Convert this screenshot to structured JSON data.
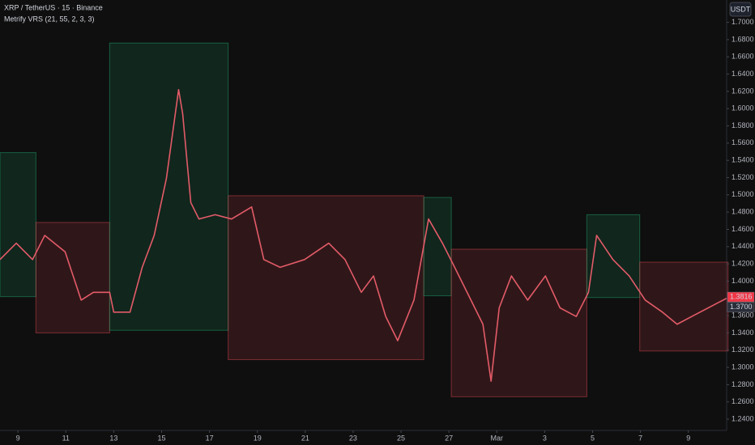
{
  "chart_data": {
    "type": "line",
    "title": "XRP / TetherUS · 15 · Binance",
    "subtitle": "Metrify VRS (21, 55, 2, 3, 3)",
    "currency": "USDT",
    "x": [
      -0.75,
      -0.07,
      0.61,
      1.12,
      1.97,
      2.64,
      3.15,
      3.83,
      4.0,
      4.68,
      5.19,
      5.69,
      6.2,
      6.71,
      6.88,
      7.22,
      7.56,
      8.24,
      8.92,
      9.76,
      10.27,
      10.95,
      11.97,
      12.98,
      13.66,
      14.34,
      14.85,
      15.36,
      15.86,
      16.54,
      17.15,
      17.73,
      18.24,
      18.92,
      19.42,
      19.76,
      20.1,
      20.61,
      21.29,
      22.03,
      22.64,
      23.32,
      23.83,
      24.17,
      24.85,
      25.53,
      26.2,
      26.92,
      27.53,
      28.14,
      29.59
    ],
    "series": [
      {
        "color": "#e35b68",
        "values": [
          1.425,
          1.444,
          1.425,
          1.453,
          1.434,
          1.378,
          1.387,
          1.387,
          1.364,
          1.364,
          1.416,
          1.453,
          1.519,
          1.622,
          1.594,
          1.491,
          1.472,
          1.477,
          1.472,
          1.486,
          1.425,
          1.416,
          1.425,
          1.444,
          1.425,
          1.387,
          1.406,
          1.359,
          1.331,
          1.378,
          1.472,
          1.444,
          1.416,
          1.378,
          1.35,
          1.284,
          1.369,
          1.406,
          1.378,
          1.406,
          1.369,
          1.359,
          1.387,
          1.453,
          1.425,
          1.406,
          1.378,
          1.364,
          1.35,
          1.359,
          1.38
        ]
      }
    ],
    "regimes": [
      {
        "x0": -0.75,
        "x1": 0.75,
        "y0": 1.382,
        "y1": 1.549,
        "color": "#1fa36b"
      },
      {
        "x0": 0.75,
        "x1": 3.83,
        "y0": 1.34,
        "y1": 1.468,
        "color": "#d9464f"
      },
      {
        "x0": 3.83,
        "x1": 8.78,
        "y0": 1.343,
        "y1": 1.676,
        "color": "#1fa36b"
      },
      {
        "x0": 8.78,
        "x1": 16.95,
        "y0": 1.309,
        "y1": 1.499,
        "color": "#d9464f"
      },
      {
        "x0": 16.95,
        "x1": 18.1,
        "y0": 1.383,
        "y1": 1.497,
        "color": "#1fa36b"
      },
      {
        "x0": 18.1,
        "x1": 23.76,
        "y0": 1.266,
        "y1": 1.437,
        "color": "#d9464f"
      },
      {
        "x0": 23.76,
        "x1": 25.97,
        "y0": 1.381,
        "y1": 1.477,
        "color": "#1fa36b"
      },
      {
        "x0": 25.97,
        "x1": 29.66,
        "y0": 1.319,
        "y1": 1.422,
        "color": "#d9464f"
      }
    ],
    "price_tags": [
      {
        "value": 1.3816,
        "label": "1.3816",
        "color": "#f23645"
      },
      {
        "value": 1.37,
        "label": "1.3700",
        "color": "#2a2e39"
      }
    ],
    "xlim": [
      -0.75,
      29.6
    ],
    "ylim": [
      1.2269,
      1.7184
    ],
    "xticks": [
      {
        "value": 0,
        "label": "9"
      },
      {
        "value": 2,
        "label": "11"
      },
      {
        "value": 4,
        "label": "13"
      },
      {
        "value": 6,
        "label": "15"
      },
      {
        "value": 8,
        "label": "17"
      },
      {
        "value": 10,
        "label": "19"
      },
      {
        "value": 12,
        "label": "21"
      },
      {
        "value": 14,
        "label": "23"
      },
      {
        "value": 16,
        "label": "25"
      },
      {
        "value": 18,
        "label": "27"
      },
      {
        "value": 20,
        "label": "Mar"
      },
      {
        "value": 22,
        "label": "3"
      },
      {
        "value": 24,
        "label": "5"
      },
      {
        "value": 26,
        "label": "7"
      },
      {
        "value": 28,
        "label": "9"
      }
    ],
    "yticks": [
      {
        "value": 1.24,
        "label": "1.2400"
      },
      {
        "value": 1.26,
        "label": "1.2600"
      },
      {
        "value": 1.28,
        "label": "1.2800"
      },
      {
        "value": 1.3,
        "label": "1.3000"
      },
      {
        "value": 1.32,
        "label": "1.3200"
      },
      {
        "value": 1.34,
        "label": "1.3400"
      },
      {
        "value": 1.36,
        "label": "1.3600"
      },
      {
        "value": 1.38,
        "label": "1.3800"
      },
      {
        "value": 1.4,
        "label": "1.4000"
      },
      {
        "value": 1.42,
        "label": "1.4200"
      },
      {
        "value": 1.44,
        "label": "1.4400"
      },
      {
        "value": 1.46,
        "label": "1.4600"
      },
      {
        "value": 1.48,
        "label": "1.4800"
      },
      {
        "value": 1.5,
        "label": "1.5000"
      },
      {
        "value": 1.52,
        "label": "1.5200"
      },
      {
        "value": 1.54,
        "label": "1.5400"
      },
      {
        "value": 1.56,
        "label": "1.5600"
      },
      {
        "value": 1.58,
        "label": "1.5800"
      },
      {
        "value": 1.6,
        "label": "1.6000"
      },
      {
        "value": 1.62,
        "label": "1.6200"
      },
      {
        "value": 1.64,
        "label": "1.6400"
      },
      {
        "value": 1.66,
        "label": "1.6600"
      },
      {
        "value": 1.68,
        "label": "1.6800"
      },
      {
        "value": 1.7,
        "label": "1.7000"
      }
    ],
    "grid": false
  }
}
